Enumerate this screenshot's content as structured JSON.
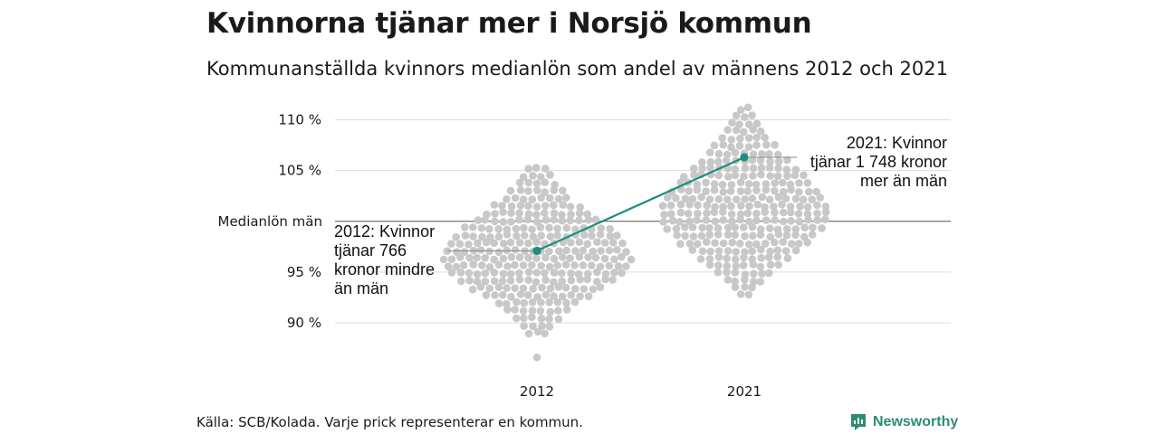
{
  "chart_data": {
    "type": "scatter",
    "title": "Kvinnorna tjänar mer i Norsjö kommun",
    "subtitle": "Kommunanställda kvinnors medianlön som andel av männens 2012 och 2021",
    "categories": [
      "2012",
      "2021"
    ],
    "yticks": [
      {
        "value": 110,
        "label": "110 %"
      },
      {
        "value": 105,
        "label": "105 %"
      },
      {
        "value": 95,
        "label": "95 %"
      },
      {
        "value": 90,
        "label": "90 %"
      }
    ],
    "reference_line": {
      "value": 100,
      "label": "Medianlön män"
    },
    "ylim": [
      86,
      112
    ],
    "series": [
      {
        "values": [
          97.1,
          106.3
        ]
      }
    ],
    "distribution": [
      {
        "category": "2012",
        "min": 89.0,
        "max": 105.2,
        "peak": 96.3,
        "count": 290,
        "outlier": 86.6
      },
      {
        "category": "2021",
        "min": 92.6,
        "max": 111.1,
        "peak": 100.5,
        "count": 290
      }
    ],
    "annotations": [
      {
        "category": "2012",
        "lines": [
          "2012: Kvinnor",
          "tjänar 766",
          "kronor mindre",
          "än män"
        ]
      },
      {
        "category": "2021",
        "lines": [
          "2021: Kvinnor",
          "tjänar 1 748 kronor",
          "mer än män"
        ]
      }
    ],
    "grid": true,
    "colors": {
      "dots": "#c8c8c8",
      "highlight": "#1b8e7e",
      "grid": "#dddddd",
      "reference": "#555555"
    }
  },
  "footer": {
    "source": "Källa: SCB/Kolada. Varje prick representerar en kommun."
  },
  "brand": {
    "name": "Newsworthy",
    "icon": "newsworthy-logo-icon"
  }
}
